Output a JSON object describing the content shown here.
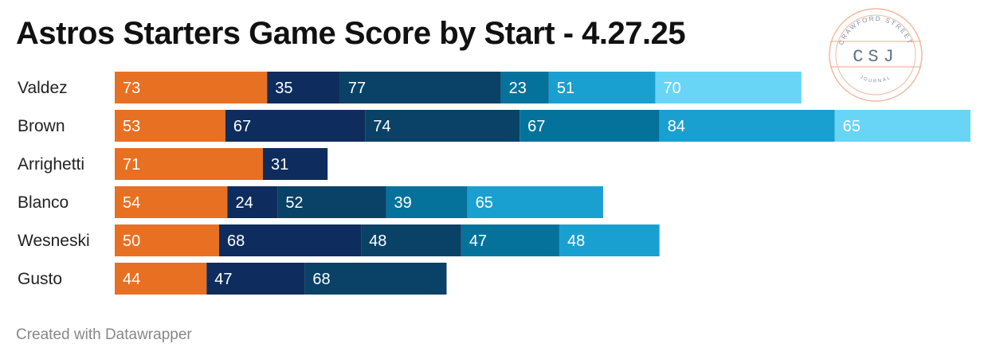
{
  "header": {
    "title": "Astros Starters Game Score by Start - 4.27.25"
  },
  "logo": {
    "top_text": "CRAWFORD STREET",
    "initials": "CSJ",
    "bottom_text": "JOURNAL"
  },
  "footer": {
    "credit": "Created with Datawrapper"
  },
  "chart_data": {
    "type": "bar",
    "orientation": "horizontal",
    "stacked": true,
    "title": "Astros Starters Game Score by Start - 4.27.25",
    "categories": [
      "Valdez",
      "Brown",
      "Arrighetti",
      "Blanco",
      "Wesneski",
      "Gusto"
    ],
    "rows": [
      {
        "name": "Valdez",
        "values": [
          73,
          35,
          77,
          23,
          51,
          70
        ]
      },
      {
        "name": "Brown",
        "values": [
          53,
          67,
          74,
          67,
          84,
          65
        ]
      },
      {
        "name": "Arrighetti",
        "values": [
          71,
          31
        ]
      },
      {
        "name": "Blanco",
        "values": [
          54,
          24,
          52,
          39,
          65
        ]
      },
      {
        "name": "Wesneski",
        "values": [
          50,
          68,
          48,
          47,
          48
        ]
      },
      {
        "name": "Gusto",
        "values": [
          44,
          47,
          68
        ]
      }
    ],
    "segment_colors": [
      "#e87022",
      "#0e2d5e",
      "#0a4166",
      "#05729c",
      "#1aa0d0",
      "#68d5f7"
    ],
    "label_color": "#ffffff",
    "grid": false,
    "legend": "none"
  }
}
